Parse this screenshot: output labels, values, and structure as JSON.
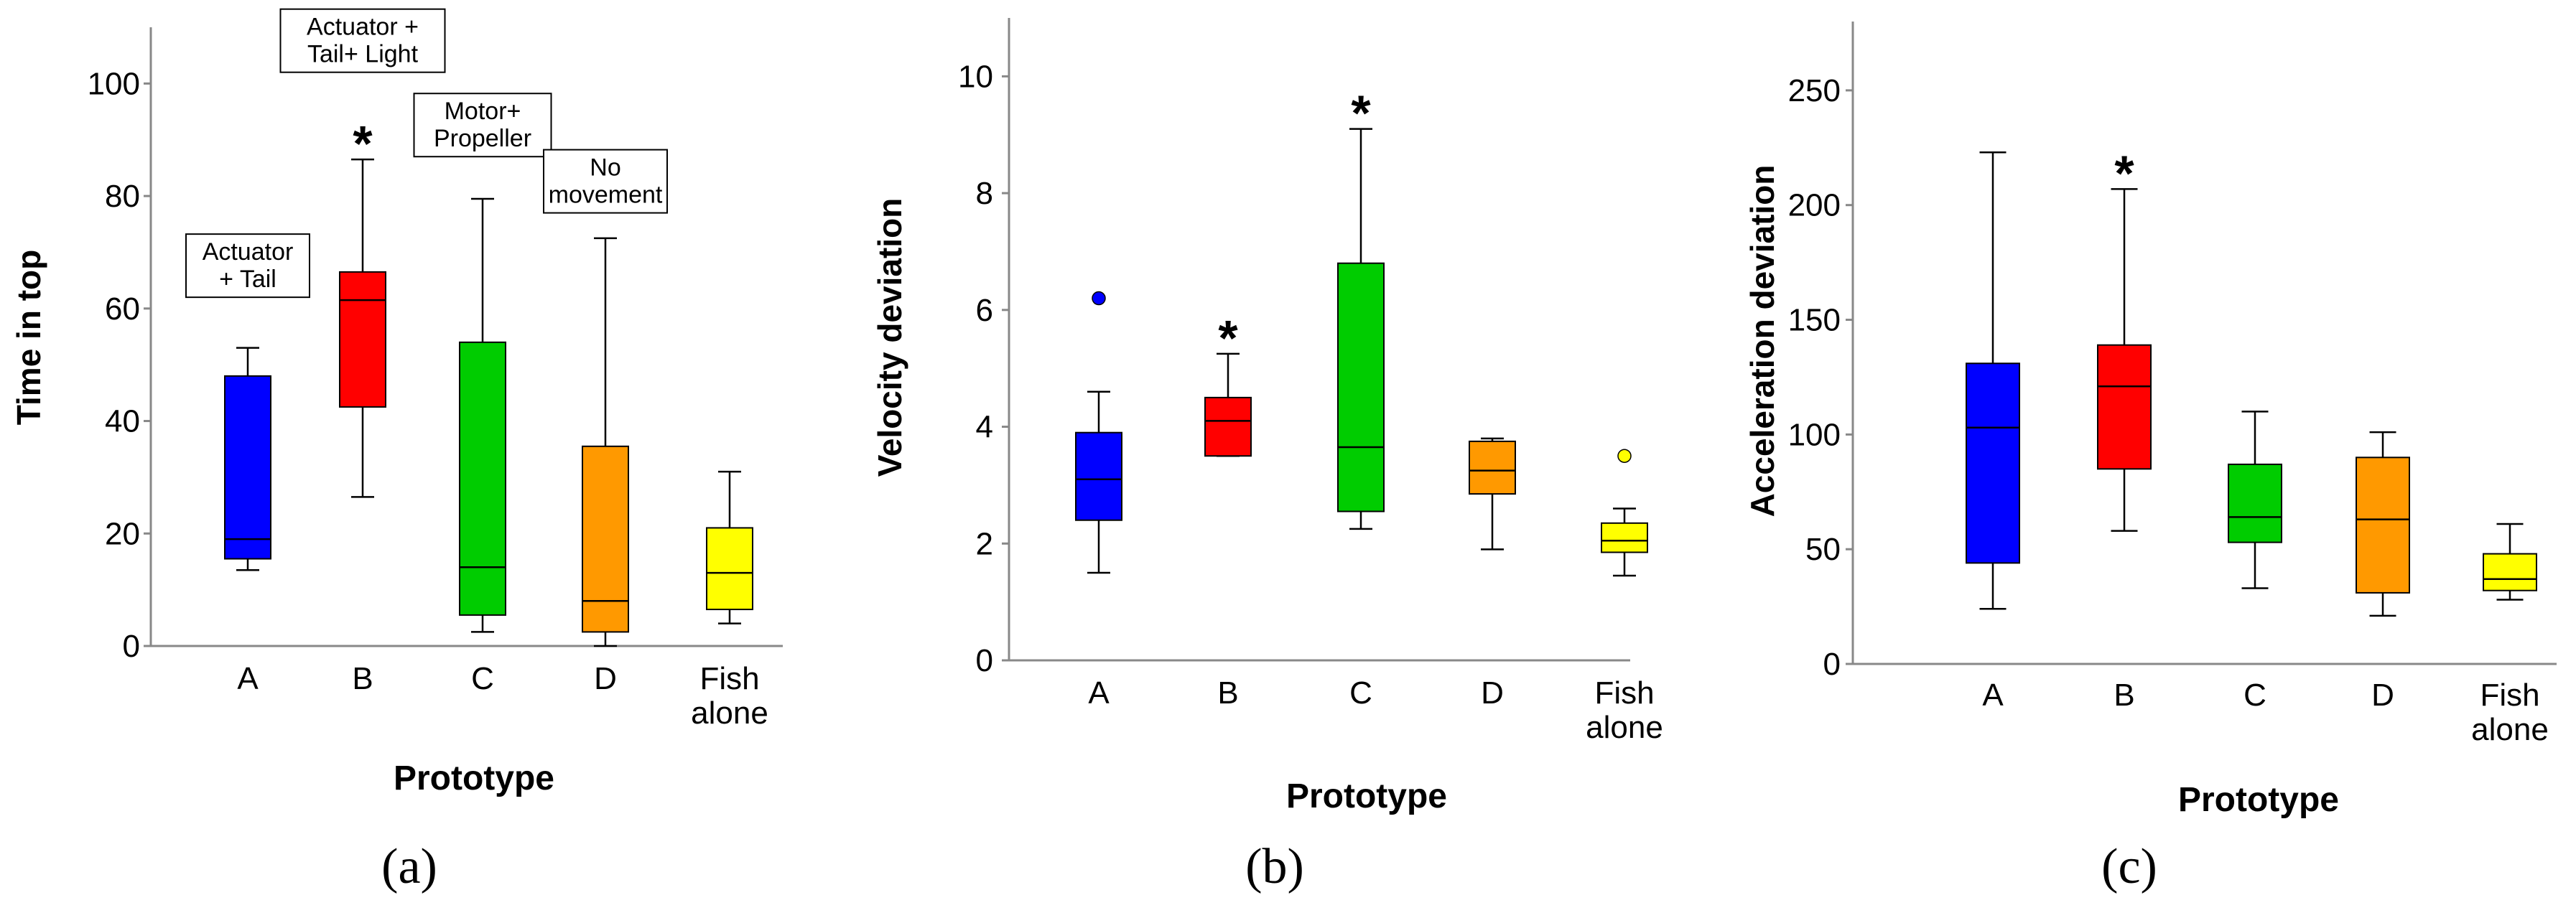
{
  "figure_label": "Box plots by prototype",
  "colors": {
    "A": "#0000ff",
    "B": "#ff0000",
    "C": "#00cc00",
    "D": "#ff9900",
    "Fish alone": "#ffff00"
  },
  "chart_data": [
    {
      "type": "box",
      "panel_label": "(a)",
      "xlabel": "Prototype",
      "ylabel": "Time in top",
      "ylim": [
        0,
        110
      ],
      "yticks": [
        0,
        20,
        40,
        60,
        80,
        100
      ],
      "categories": [
        {
          "name": "A",
          "line1": "A",
          "line2": "",
          "whisker_low": 13.5,
          "q1": 15.5,
          "median": 19,
          "q3": 48,
          "whisker_high": 53,
          "outliers": [],
          "significant": false,
          "annotation": {
            "lines": [
              "Actuator",
              "+ Tail"
            ],
            "y": 62
          }
        },
        {
          "name": "B",
          "line1": "B",
          "line2": "",
          "whisker_low": 26.5,
          "q1": 42.5,
          "median": 61.5,
          "q3": 66.5,
          "whisker_high": 86.5,
          "outliers": [],
          "significant": true,
          "annotation": {
            "lines": [
              "Actuator +",
              "Tail+ Light"
            ],
            "y": 102
          }
        },
        {
          "name": "C",
          "line1": "C",
          "line2": "",
          "whisker_low": 2.5,
          "q1": 5.5,
          "median": 14,
          "q3": 54,
          "whisker_high": 79.5,
          "outliers": [],
          "significant": false,
          "annotation": {
            "lines": [
              "Motor+",
              "Propeller"
            ],
            "y": 87
          }
        },
        {
          "name": "D",
          "line1": "D",
          "line2": "",
          "whisker_low": 0,
          "q1": 2.5,
          "median": 8,
          "q3": 35.5,
          "whisker_high": 72.5,
          "outliers": [],
          "significant": false,
          "annotation": {
            "lines": [
              "No",
              "movement"
            ],
            "y": 77
          }
        },
        {
          "name": "Fish alone",
          "line1": "Fish",
          "line2": "alone",
          "whisker_low": 4,
          "q1": 6.5,
          "median": 13,
          "q3": 21,
          "whisker_high": 31,
          "outliers": [],
          "significant": false
        }
      ]
    },
    {
      "type": "box",
      "panel_label": "(b)",
      "xlabel": "Prototype",
      "ylabel": "Velocity deviation",
      "ylim": [
        0,
        11
      ],
      "yticks": [
        0,
        2,
        4,
        6,
        8,
        10
      ],
      "categories": [
        {
          "name": "A",
          "line1": "A",
          "line2": "",
          "whisker_low": 1.5,
          "q1": 2.4,
          "median": 3.1,
          "q3": 3.9,
          "whisker_high": 4.6,
          "outliers": [
            6.2
          ],
          "significant": false
        },
        {
          "name": "B",
          "line1": "B",
          "line2": "",
          "whisker_low": 3.5,
          "q1": 3.5,
          "median": 4.1,
          "q3": 4.5,
          "whisker_high": 5.25,
          "outliers": [],
          "significant": true
        },
        {
          "name": "C",
          "line1": "C",
          "line2": "",
          "whisker_low": 2.25,
          "q1": 2.55,
          "median": 3.65,
          "q3": 6.8,
          "whisker_high": 9.1,
          "outliers": [],
          "significant": true
        },
        {
          "name": "D",
          "line1": "D",
          "line2": "",
          "whisker_low": 1.9,
          "q1": 2.85,
          "median": 3.25,
          "q3": 3.75,
          "whisker_high": 3.8,
          "outliers": [],
          "significant": false
        },
        {
          "name": "Fish alone",
          "line1": "Fish",
          "line2": "alone",
          "whisker_low": 1.45,
          "q1": 1.85,
          "median": 2.05,
          "q3": 2.35,
          "whisker_high": 2.6,
          "outliers": [
            3.5
          ],
          "significant": false
        }
      ]
    },
    {
      "type": "box",
      "panel_label": "(c)",
      "xlabel": "Prototype",
      "ylabel": "Acceleration deviation",
      "ylim": [
        0,
        280
      ],
      "yticks": [
        0,
        50,
        100,
        150,
        200,
        250
      ],
      "categories": [
        {
          "name": "A",
          "line1": "A",
          "line2": "",
          "whisker_low": 24,
          "q1": 44,
          "median": 103,
          "q3": 131,
          "whisker_high": 223,
          "outliers": [],
          "significant": false
        },
        {
          "name": "B",
          "line1": "B",
          "line2": "",
          "whisker_low": 58,
          "q1": 85,
          "median": 121,
          "q3": 139,
          "whisker_high": 207,
          "outliers": [],
          "significant": true
        },
        {
          "name": "C",
          "line1": "C",
          "line2": "",
          "whisker_low": 33,
          "q1": 53,
          "median": 64,
          "q3": 87,
          "whisker_high": 110,
          "outliers": [],
          "significant": false
        },
        {
          "name": "D",
          "line1": "D",
          "line2": "",
          "whisker_low": 21,
          "q1": 31,
          "median": 63,
          "q3": 90,
          "whisker_high": 101,
          "outliers": [],
          "significant": false
        },
        {
          "name": "Fish alone",
          "line1": "Fish",
          "line2": "alone",
          "whisker_low": 28,
          "q1": 32,
          "median": 37,
          "q3": 48,
          "whisker_high": 61,
          "outliers": [],
          "significant": false
        }
      ]
    }
  ],
  "significance_marker": "*"
}
